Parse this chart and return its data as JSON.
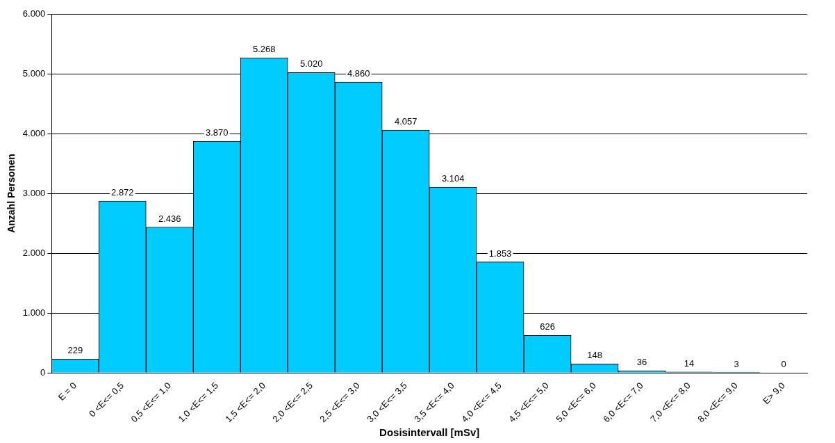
{
  "chart_data": {
    "type": "bar",
    "xlabel": "Dosisintervall [mSv]",
    "ylabel": "Anzahl Personen",
    "categories": [
      "E = 0",
      "0 <E<= 0,5",
      "0,5 <E<= 1,0",
      "1,0 <E<= 1,5",
      "1,5 <E<= 2,0",
      "2,0 <E<= 2,5",
      "2,5 <E<= 3,0",
      "3,0 <E<= 3,5",
      "3,5 <E<= 4,0",
      "4,0 <E<= 4,5",
      "4,5 <E<= 5,0",
      "5,0 <E<= 6,0",
      "6,0 <E<= 7,0",
      "7,0 <E<= 8,0",
      "8,0 <E<= 9,0",
      "E> 9,0"
    ],
    "values": [
      229,
      2872,
      2436,
      3870,
      5268,
      5020,
      4860,
      4057,
      3104,
      1853,
      626,
      148,
      36,
      14,
      3,
      0
    ],
    "value_labels": [
      "229",
      "2.872",
      "2.436",
      "3.870",
      "5.268",
      "5.020",
      "4.860",
      "4.057",
      "3.104",
      "1.853",
      "626",
      "148",
      "36",
      "14",
      "3",
      "0"
    ],
    "color": "#00ccff",
    "ylim": [
      0,
      6000
    ],
    "yticks": [
      {
        "value": 0,
        "label": "0"
      },
      {
        "value": 1000,
        "label": "1.000"
      },
      {
        "value": 2000,
        "label": "2.000"
      },
      {
        "value": 3000,
        "label": "3.000"
      },
      {
        "value": 4000,
        "label": "4.000"
      },
      {
        "value": 5000,
        "label": "5.000"
      },
      {
        "value": 6000,
        "label": "6.000"
      }
    ],
    "grid": "y",
    "legend": false
  }
}
